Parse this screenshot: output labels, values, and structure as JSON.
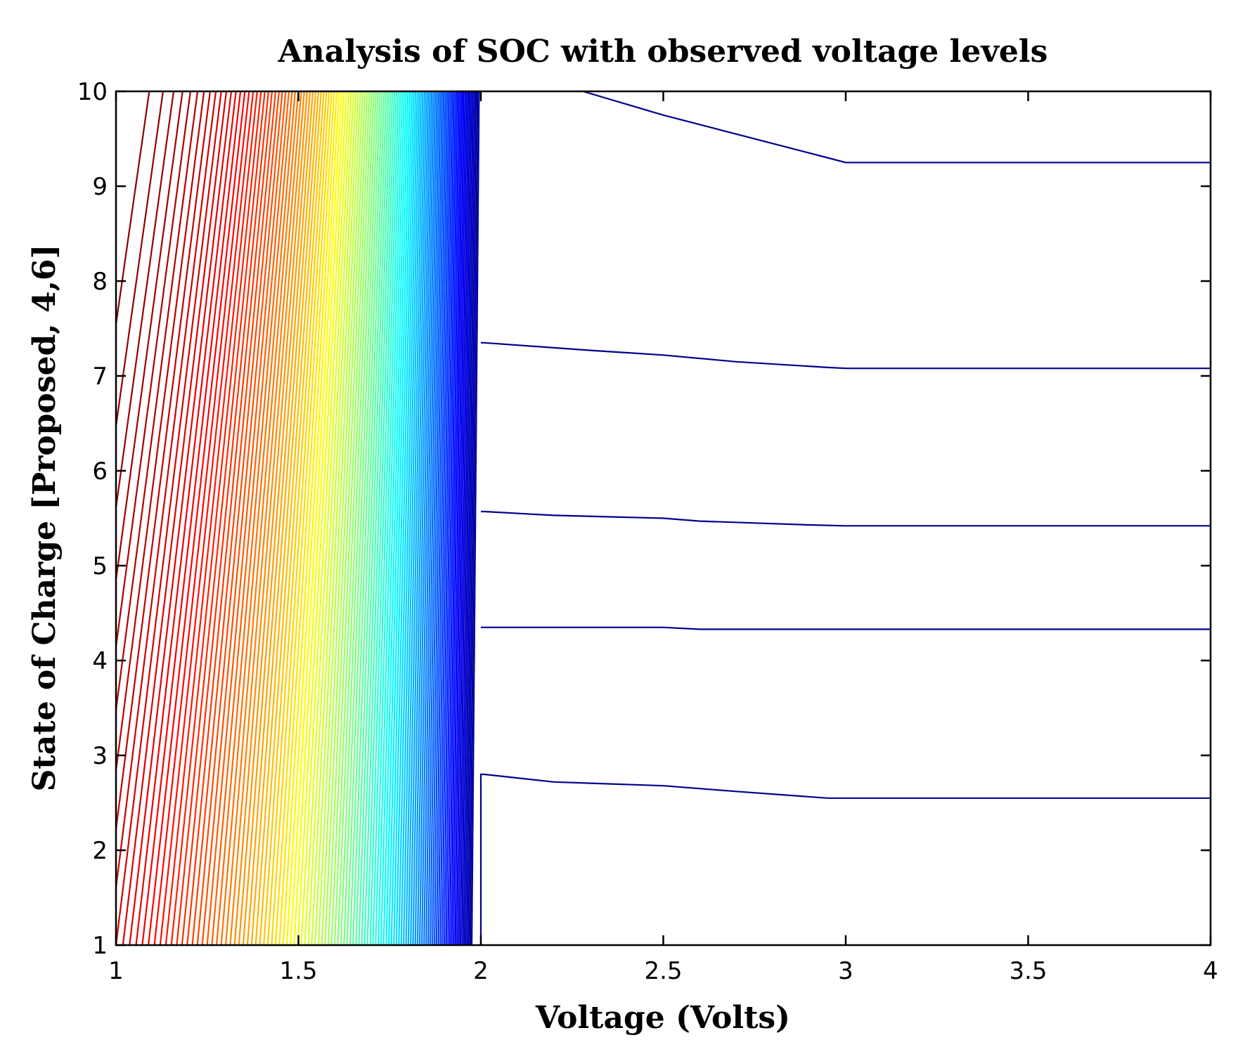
{
  "chart_data": {
    "type": "contour",
    "title": "Analysis of SOC with observed voltage levels",
    "xlabel": "Voltage (Volts)",
    "ylabel": "State of Charge [Proposed, 4,6]",
    "xlim": [
      1,
      4
    ],
    "ylim": [
      1,
      10
    ],
    "x_ticks": [
      1,
      1.5,
      2,
      2.5,
      3,
      3.5,
      4
    ],
    "x_tick_labels": [
      "1",
      "1.5",
      "2",
      "2.5",
      "3",
      "3.5",
      "4"
    ],
    "y_ticks": [
      1,
      2,
      3,
      4,
      5,
      6,
      7,
      8,
      9,
      10
    ],
    "y_tick_labels": [
      "1",
      "2",
      "3",
      "4",
      "5",
      "6",
      "7",
      "8",
      "9",
      "10"
    ],
    "grid": false,
    "colormap": "jet",
    "dense_contour_region": {
      "x_range": [
        1,
        2
      ],
      "description_levels": 120,
      "color_low": "#00008f",
      "color_high": "#800000"
    },
    "series": [
      {
        "x": [
          2.0,
          2.0,
          2.01,
          2.2,
          2.5,
          2.7,
          2.95,
          3.0,
          4.0
        ],
        "y": [
          1.0,
          2.8,
          2.8,
          2.72,
          2.68,
          2.62,
          2.55,
          2.55,
          2.55
        ]
      },
      {
        "x": [
          2.0,
          2.01,
          2.5,
          2.6,
          4.0
        ],
        "y": [
          4.35,
          4.35,
          4.35,
          4.33,
          4.33
        ]
      },
      {
        "x": [
          2.0,
          2.01,
          2.2,
          2.5,
          2.6,
          2.75,
          2.9,
          3.0,
          4.0
        ],
        "y": [
          5.57,
          5.57,
          5.53,
          5.5,
          5.47,
          5.45,
          5.43,
          5.42,
          5.42
        ]
      },
      {
        "x": [
          2.0,
          2.01,
          2.3,
          2.5,
          2.7,
          2.95,
          3.0,
          4.0
        ],
        "y": [
          7.35,
          7.35,
          7.27,
          7.22,
          7.15,
          7.09,
          7.08,
          7.08
        ]
      },
      {
        "x": [
          2.28,
          2.5,
          2.7,
          2.95,
          3.0,
          4.0
        ],
        "y": [
          10.0,
          9.75,
          9.55,
          9.3,
          9.25,
          9.25
        ]
      }
    ],
    "series_color": "#00008f"
  }
}
